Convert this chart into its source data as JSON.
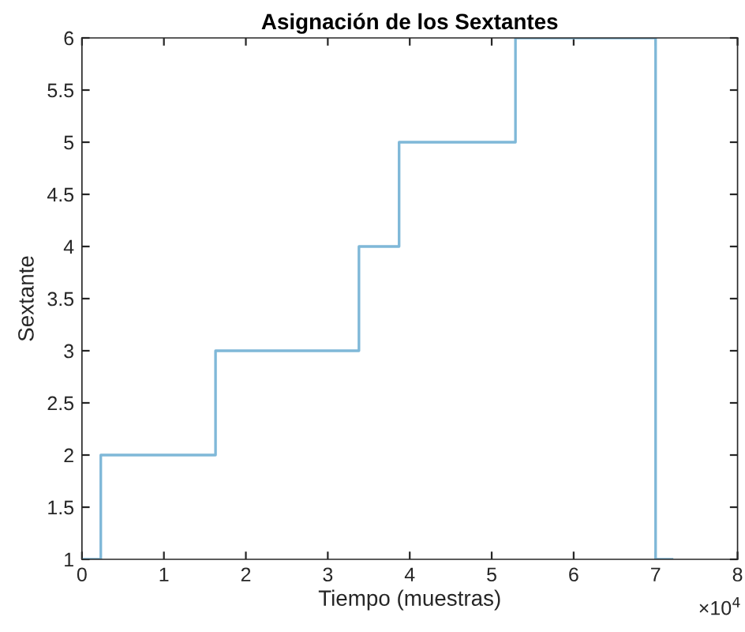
{
  "chart_data": {
    "type": "step",
    "title": "Asignación de los Sextantes",
    "xlabel": "Tiempo (muestras)",
    "ylabel": "Sextante",
    "x": [
      0,
      0.23,
      1.63,
      3.38,
      3.87,
      5.29,
      7.0,
      7.2
    ],
    "series": [
      {
        "color": "#7fb8d8",
        "values": [
          1,
          2,
          3,
          4,
          5,
          6,
          1,
          1
        ]
      }
    ],
    "xlim": [
      0,
      8
    ],
    "xticks": [
      0,
      1,
      2,
      3,
      4,
      5,
      6,
      7,
      8
    ],
    "ylim": [
      1,
      6
    ],
    "yticks": [
      1,
      1.5,
      2,
      2.5,
      3,
      3.5,
      4,
      4.5,
      5,
      5.5,
      6
    ],
    "annotations": [
      "×10$^{4}$"
    ],
    "grid": false
  }
}
